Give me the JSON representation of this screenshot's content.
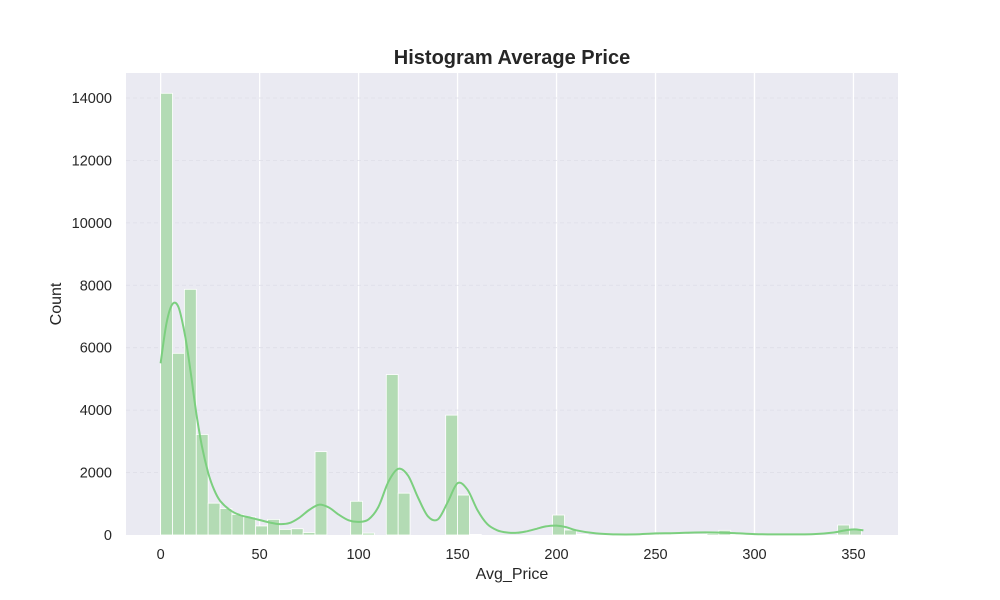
{
  "chart_data": {
    "type": "bar",
    "title": "Histogram Average Price",
    "xlabel": "Avg_Price",
    "ylabel": "Count",
    "xlim": [
      -17.5,
      372.5
    ],
    "ylim": [
      0,
      14800
    ],
    "x_ticks": [
      0,
      50,
      100,
      150,
      200,
      250,
      300,
      350
    ],
    "y_ticks": [
      0,
      2000,
      4000,
      6000,
      8000,
      10000,
      12000,
      14000
    ],
    "grid": true,
    "bin_width": 6,
    "bin_starts": [
      0,
      6,
      12,
      18,
      24,
      30,
      36,
      42,
      48,
      54,
      60,
      66,
      72,
      78,
      84,
      90,
      96,
      102,
      108,
      114,
      120,
      126,
      132,
      138,
      144,
      150,
      156,
      162,
      168,
      174,
      180,
      186,
      192,
      198,
      204,
      210,
      216,
      222,
      228,
      234,
      240,
      246,
      252,
      258,
      264,
      270,
      276,
      282,
      288,
      294,
      300,
      306,
      312,
      318,
      324,
      330,
      336,
      342,
      348
    ],
    "values": [
      14150,
      5820,
      7870,
      3220,
      1020,
      850,
      660,
      580,
      290,
      500,
      180,
      200,
      80,
      2670,
      0,
      0,
      1080,
      60,
      0,
      5140,
      1340,
      0,
      0,
      0,
      3840,
      1280,
      20,
      0,
      0,
      0,
      0,
      0,
      0,
      640,
      160,
      20,
      0,
      0,
      0,
      0,
      20,
      30,
      30,
      20,
      20,
      20,
      50,
      150,
      20,
      20,
      0,
      0,
      0,
      0,
      0,
      0,
      0,
      320,
      190
    ],
    "kde": {
      "x": [
        0,
        3,
        6,
        9,
        12,
        15,
        18,
        21,
        24,
        27,
        30,
        35,
        40,
        45,
        50,
        55,
        60,
        65,
        70,
        75,
        80,
        85,
        90,
        95,
        100,
        105,
        110,
        115,
        120,
        125,
        130,
        135,
        140,
        145,
        150,
        155,
        160,
        165,
        170,
        175,
        180,
        185,
        190,
        195,
        200,
        205,
        210,
        220,
        230,
        240,
        250,
        260,
        270,
        280,
        290,
        300,
        310,
        320,
        330,
        340,
        345,
        350,
        355
      ],
      "y": [
        5500,
        6800,
        7400,
        7300,
        6500,
        5300,
        3900,
        2800,
        2000,
        1450,
        1100,
        800,
        640,
        560,
        480,
        400,
        350,
        380,
        550,
        800,
        970,
        880,
        650,
        470,
        420,
        500,
        900,
        1700,
        2120,
        1900,
        1200,
        600,
        500,
        1050,
        1660,
        1450,
        800,
        350,
        150,
        80,
        70,
        120,
        200,
        280,
        300,
        250,
        150,
        50,
        20,
        20,
        50,
        60,
        80,
        80,
        60,
        30,
        20,
        20,
        30,
        80,
        140,
        180,
        150
      ]
    },
    "bar_color": "#b3dbb4",
    "line_color": "#7ccf7f",
    "background_color": "#eaeaf2"
  }
}
